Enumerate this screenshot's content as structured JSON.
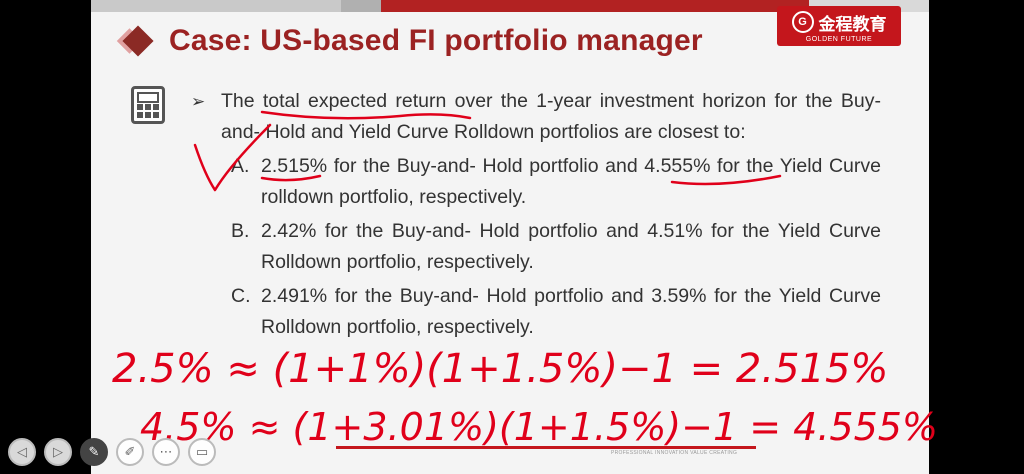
{
  "slide": {
    "title": "Case: US-based FI portfolio manager",
    "logo": {
      "mark": "G",
      "name_cn": "金程教育",
      "name_en": "GOLDEN FUTURE"
    },
    "footer_text": "PROFESSIONAL INNOVATION VALUE CREATING",
    "question": {
      "bullet": "➢",
      "text": "The total expected return over the 1-year investment horizon for the Buy-and- Hold and Yield Curve Rolldown portfolios are closest to:"
    },
    "options": [
      {
        "letter": "A.",
        "text": "2.515% for the Buy-and- Hold portfolio and 4.555% for the Yield Curve rolldown portfolio, respectively."
      },
      {
        "letter": "B.",
        "text": "2.42% for the Buy-and- Hold portfolio and 4.51% for the Yield Curve Rolldown portfolio, respectively."
      },
      {
        "letter": "C.",
        "text": "2.491% for the Buy-and- Hold portfolio and 3.59% for the Yield Curve Rolldown portfolio, respectively."
      }
    ],
    "handwriting": {
      "line1": "2.5% ≈ (1+1%)(1+1.5%)−1 = 2.515%",
      "line2": "4.5% ≈ (1+3.01%)(1+1.5%)−1 = 4.555%"
    }
  },
  "player_controls": [
    {
      "name": "prev",
      "glyph": "◁"
    },
    {
      "name": "next",
      "glyph": "▷"
    },
    {
      "name": "pen",
      "glyph": "✎"
    },
    {
      "name": "marker",
      "glyph": "✐"
    },
    {
      "name": "menu",
      "glyph": "⋯"
    },
    {
      "name": "screen",
      "glyph": "▭"
    }
  ],
  "colors": {
    "title": "#9b2222",
    "accent": "#c4161c",
    "ink": "#e0001a"
  }
}
